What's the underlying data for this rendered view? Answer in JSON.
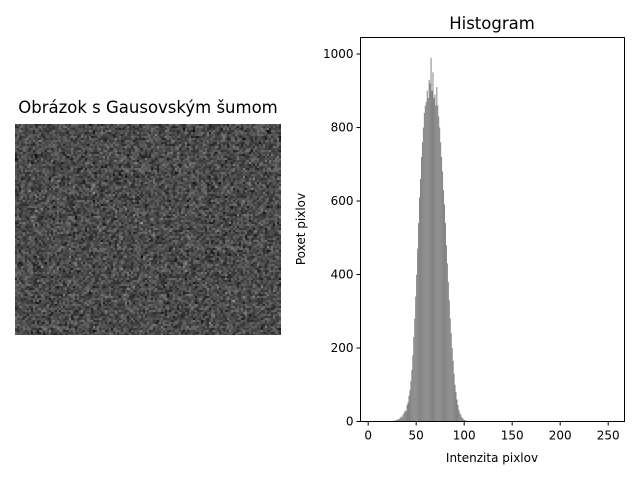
{
  "left_panel": {
    "title": "Obrázok s Gausovským šumom",
    "image_description_icon": "noise-image",
    "noise_mean": 75,
    "noise_std": 16
  },
  "chart_data": {
    "type": "bar",
    "title": "Histogram",
    "xlabel": "Intenzita pixlov",
    "ylabel": "Poxet pixlov",
    "xlim": [
      -8,
      267
    ],
    "ylim": [
      0,
      1045
    ],
    "x_ticks": [
      0,
      50,
      100,
      150,
      200,
      250
    ],
    "y_ticks": [
      0,
      200,
      400,
      600,
      800,
      1000
    ],
    "bar_color": "#808080",
    "grid": false,
    "bins": [
      0,
      1,
      2,
      3,
      4,
      5,
      6,
      7,
      8,
      9,
      10,
      11,
      12,
      13,
      14,
      15,
      16,
      17,
      18,
      19,
      20,
      21,
      22,
      23,
      24,
      25,
      26,
      27,
      28,
      29,
      30,
      31,
      32,
      33,
      34,
      35,
      36,
      37,
      38,
      39,
      40,
      41,
      42,
      43,
      44,
      45,
      46,
      47,
      48,
      49,
      50,
      51,
      52,
      53,
      54,
      55,
      56,
      57,
      58,
      59,
      60,
      61,
      62,
      63,
      64,
      65,
      66,
      67,
      68,
      69,
      70,
      71,
      72,
      73,
      74,
      75,
      76,
      77,
      78,
      79,
      80,
      81,
      82,
      83,
      84,
      85,
      86,
      87,
      88,
      89,
      90,
      91,
      92,
      93,
      94,
      95,
      96,
      97,
      98,
      99,
      100,
      101,
      102,
      103,
      104,
      105,
      106,
      107,
      108,
      109,
      110,
      111,
      112,
      113,
      114,
      115,
      116,
      117,
      118,
      119,
      120,
      121,
      122,
      123,
      124,
      125,
      126,
      127,
      128,
      129,
      130
    ],
    "values": [
      0,
      0,
      0,
      0,
      0,
      0,
      0,
      0,
      0,
      0,
      0,
      0,
      0,
      0,
      0,
      0,
      0,
      0,
      0,
      0,
      0,
      0,
      0,
      0,
      0,
      1,
      2,
      2,
      3,
      4,
      6,
      5,
      8,
      10,
      14,
      12,
      20,
      24,
      30,
      28,
      45,
      52,
      70,
      85,
      110,
      140,
      180,
      230,
      280,
      340,
      400,
      470,
      540,
      610,
      660,
      720,
      760,
      800,
      840,
      860,
      870,
      900,
      880,
      930,
      920,
      990,
      900,
      950,
      880,
      890,
      860,
      910,
      860,
      830,
      800,
      760,
      720,
      680,
      630,
      590,
      540,
      480,
      430,
      380,
      330,
      280,
      240,
      200,
      165,
      130,
      100,
      80,
      60,
      45,
      32,
      24,
      18,
      12,
      9,
      6,
      4,
      3,
      2,
      1,
      1,
      0,
      1,
      0,
      0,
      0,
      0,
      0,
      0,
      0,
      0,
      0,
      0,
      0,
      0,
      0,
      0,
      0,
      0,
      0,
      0,
      0,
      0,
      0,
      0,
      0,
      0
    ]
  }
}
